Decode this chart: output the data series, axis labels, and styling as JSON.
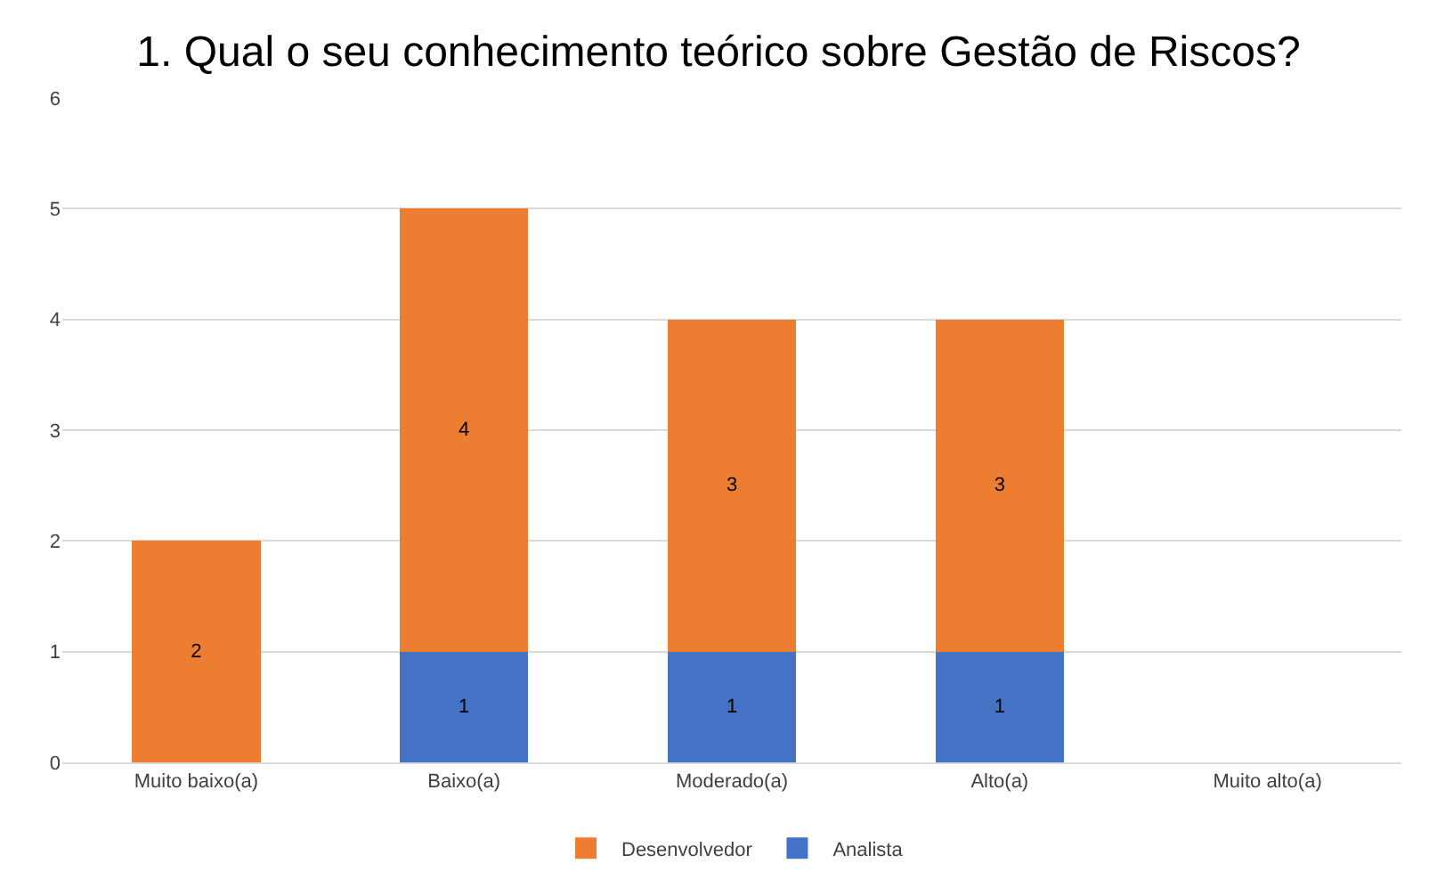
{
  "chart_data": {
    "type": "bar",
    "title": "1. Qual o seu conhecimento teórico sobre Gestão de Riscos?",
    "categories": [
      "Muito baixo(a)",
      "Baixo(a)",
      "Moderado(a)",
      "Alto(a)",
      "Muito alto(a)"
    ],
    "series": [
      {
        "name": "Analista",
        "color": "#4472c4",
        "values": [
          null,
          1,
          1,
          1,
          null
        ]
      },
      {
        "name": "Desenvolvedor",
        "color": "#ed7d31",
        "values": [
          2,
          4,
          3,
          3,
          null
        ]
      }
    ],
    "stacked": true,
    "data_labels": true,
    "ylim": [
      0,
      6
    ],
    "yticks": [
      0,
      1,
      2,
      3,
      4,
      5,
      6
    ],
    "grid": "y",
    "legend": "bottom"
  }
}
